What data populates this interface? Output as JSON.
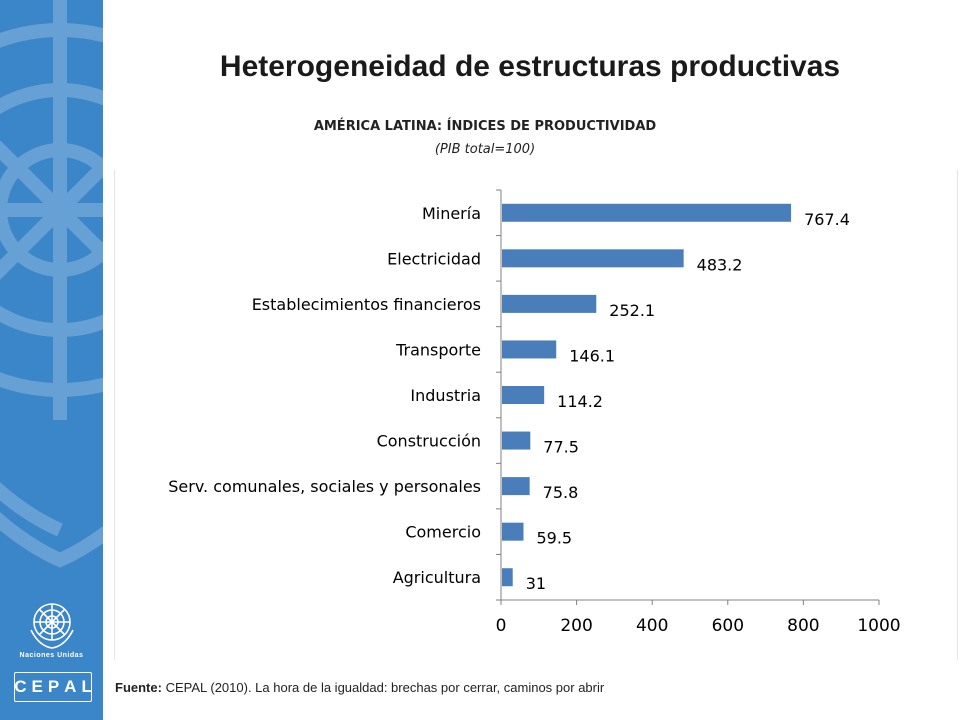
{
  "page": {
    "title": "Heterogeneidad de estructuras productivas",
    "source_label": "Fuente:",
    "source_text": "CEPAL (2010). La hora de la igualdad: brechas por cerrar, caminos por abrir"
  },
  "sidebar": {
    "background_color": "#3b86c8",
    "un_label": "Naciones Unidas",
    "cepal_letters": [
      "C",
      "E",
      "P",
      "A",
      "L"
    ]
  },
  "chart_data": {
    "type": "bar",
    "orientation": "horizontal",
    "title": "AMÉRICA LATINA: ÍNDICES DE PRODUCTIVIDAD",
    "subtitle": "(PIB total=100)",
    "categories": [
      "Minería",
      "Electricidad",
      "Establecimientos financieros",
      "Transporte",
      "Industria",
      "Construcción",
      "Serv. comunales, sociales y personales",
      "Comercio",
      "Agricultura"
    ],
    "values": [
      767.4,
      483.2,
      252.1,
      146.1,
      114.2,
      77.5,
      75.8,
      59.5,
      31
    ],
    "value_labels": [
      "767.4",
      "483.2",
      "252.1",
      "146.1",
      "114.2",
      "77.5",
      "75.8",
      "59.5",
      "31"
    ],
    "xlim": [
      0,
      1000
    ],
    "xticks": [
      0,
      200,
      400,
      600,
      800,
      1000
    ],
    "bar_color": "#4a7ebb",
    "grid": false,
    "legend": "none"
  }
}
